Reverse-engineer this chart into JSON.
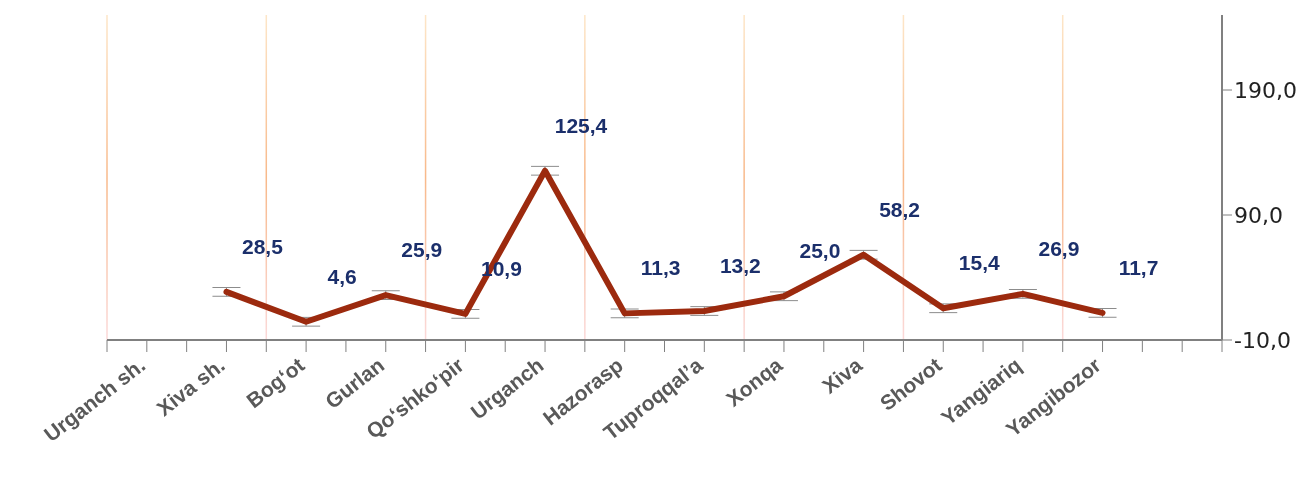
{
  "chart_data": {
    "type": "line",
    "categories": [
      "Urganch sh.",
      "Xiva sh.",
      "Bog‘ot",
      "Gurlan",
      "Qo‘shko‘pir",
      "Urganch",
      "Hazorasp",
      "Tuproqqal’a",
      "Xonqa",
      "Xiva",
      "Shovot",
      "Yangiariq",
      "Yangibozor",
      null
    ],
    "series": [
      {
        "color": "#9c2a0e",
        "values": [
          null,
          28.5,
          4.6,
          25.9,
          10.9,
          125.4,
          11.3,
          13.2,
          25.0,
          58.2,
          15.4,
          26.9,
          11.7,
          null
        ],
        "value_labels": [
          null,
          "28,5",
          "4,6",
          "25,9",
          "10,9",
          "125,4",
          "11,3",
          "13,2",
          "25,0",
          "58,2",
          "15,4",
          "26,9",
          "11,7",
          null
        ],
        "errors": [
          null,
          3.5,
          3.5,
          3.5,
          3.5,
          3.5,
          3.5,
          3.5,
          3.5,
          3.5,
          3.5,
          3.5,
          3.5,
          null
        ]
      }
    ],
    "ylim": [
      -10,
      250
    ],
    "yticks": [
      {
        "value": -10,
        "label": "-10,0"
      },
      {
        "value": 90,
        "label": "90,0"
      },
      {
        "value": 190,
        "label": "190,0"
      }
    ],
    "grid": "x",
    "marker": "none",
    "line_style": "solid"
  }
}
